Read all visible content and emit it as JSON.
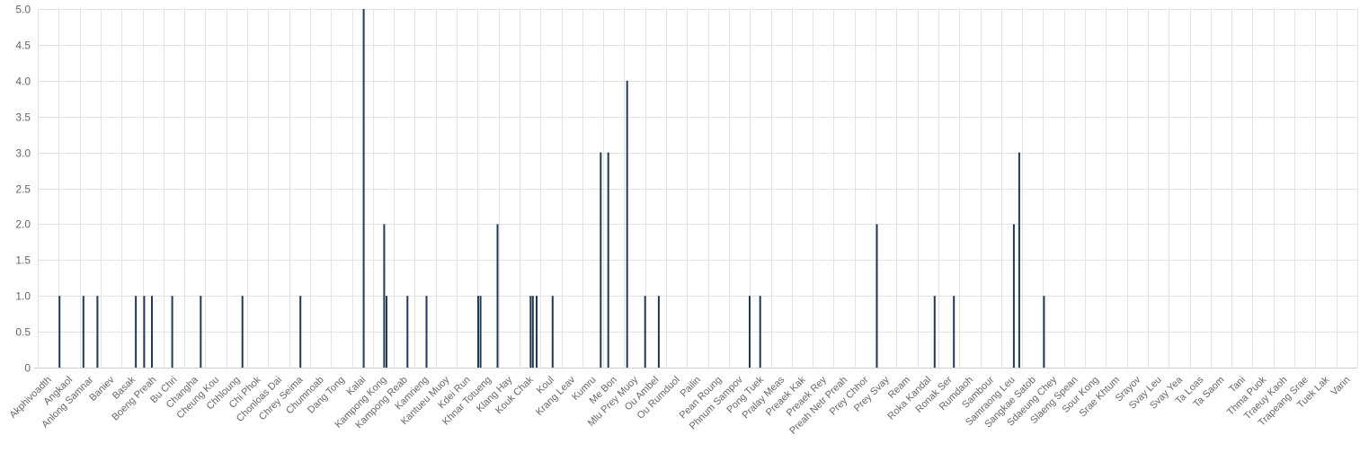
{
  "chart_data": {
    "type": "bar",
    "title": "",
    "xlabel": "",
    "ylabel": "",
    "ylim": [
      0,
      5
    ],
    "yticks": [
      "0",
      "0.5",
      "1.0",
      "1.5",
      "2.0",
      "2.5",
      "3.0",
      "3.5",
      "4.0",
      "4.5",
      "5.0"
    ],
    "grid": true,
    "legend": "none",
    "bar_color": "#1f3a5f",
    "categories": [
      "Akphivoadth",
      "Angkaol",
      "Anlong Samnar",
      "Baniev",
      "Basak",
      "Boeng Preah",
      "Bu Chri",
      "Changha",
      "Cheung Kou",
      "Chhloung",
      "Chi Phok",
      "Chonloas Dai",
      "Chrey Seima",
      "Chumnoab",
      "Dang Tong",
      "Kalai",
      "Kampong Kong",
      "Kampong Reab",
      "Kamrieng",
      "Kantueu Muoy",
      "Kdei Run",
      "Khnar Totueng",
      "Klang Hay",
      "Kouk Chak",
      "Koul",
      "Krang Leav",
      "Kumru",
      "Me Bon",
      "Mlu Prey Muoy",
      "Ou Ambel",
      "Ou Rumduol",
      "Pailin",
      "Pean Roung",
      "Phnum Sampov",
      "Pong Tuek",
      "Pralay Meas",
      "Preaek Kak",
      "Preaek Rey",
      "Preah Netr Preah",
      "Prey Chhor",
      "Prey Svay",
      "Ream",
      "Roka Kandal",
      "Ronak Ser",
      "Rumdaoh",
      "Sambour",
      "Samraong Leu",
      "Sangkae Satob",
      "Sdaeung Chey",
      "Slaeng Spean",
      "Sour Kong",
      "Srae Khtum",
      "Srayov",
      "Svay Leu",
      "Svay Yea",
      "Ta Loas",
      "Ta Saom",
      "Tani",
      "Thma Puok",
      "Traeuy Kaoh",
      "Trapeang Srae",
      "Tuek Lak",
      "Varin"
    ],
    "bars": [
      {
        "x": 1.04,
        "value": 1
      },
      {
        "x": 2.18,
        "value": 1
      },
      {
        "x": 2.85,
        "value": 1
      },
      {
        "x": 4.68,
        "value": 1
      },
      {
        "x": 5.08,
        "value": 1
      },
      {
        "x": 5.45,
        "value": 1
      },
      {
        "x": 6.42,
        "value": 1
      },
      {
        "x": 7.78,
        "value": 1
      },
      {
        "x": 9.77,
        "value": 1
      },
      {
        "x": 12.54,
        "value": 1
      },
      {
        "x": 15.56,
        "value": 5
      },
      {
        "x": 16.54,
        "value": 2
      },
      {
        "x": 16.65,
        "value": 1
      },
      {
        "x": 17.65,
        "value": 1
      },
      {
        "x": 18.56,
        "value": 1
      },
      {
        "x": 21.03,
        "value": 1
      },
      {
        "x": 21.14,
        "value": 1
      },
      {
        "x": 21.95,
        "value": 2
      },
      {
        "x": 23.53,
        "value": 1
      },
      {
        "x": 23.64,
        "value": 1
      },
      {
        "x": 23.82,
        "value": 1
      },
      {
        "x": 24.58,
        "value": 1
      },
      {
        "x": 26.88,
        "value": 3
      },
      {
        "x": 27.24,
        "value": 3
      },
      {
        "x": 28.14,
        "value": 4
      },
      {
        "x": 29.0,
        "value": 1
      },
      {
        "x": 29.65,
        "value": 1
      },
      {
        "x": 33.99,
        "value": 1
      },
      {
        "x": 34.49,
        "value": 1
      },
      {
        "x": 40.06,
        "value": 2
      },
      {
        "x": 42.82,
        "value": 1
      },
      {
        "x": 43.74,
        "value": 1
      },
      {
        "x": 46.6,
        "value": 2
      },
      {
        "x": 46.86,
        "value": 3
      },
      {
        "x": 48.04,
        "value": 1
      }
    ]
  }
}
